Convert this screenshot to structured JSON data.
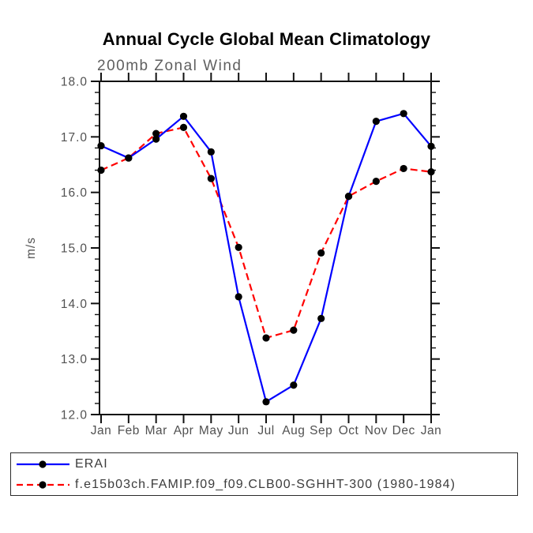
{
  "chart_data": {
    "type": "line",
    "title": "Annual Cycle Global Mean Climatology",
    "subtitle": "200mb Zonal Wind",
    "ylabel": "m/s",
    "ylim": [
      12.0,
      18.0
    ],
    "ytick_step": 1.0,
    "yminor_step": 0.2,
    "ytick_labels": [
      "12.0",
      "13.0",
      "14.0",
      "15.0",
      "16.0",
      "17.0",
      "18.0"
    ],
    "categories": [
      "Jan",
      "Feb",
      "Mar",
      "Apr",
      "May",
      "Jun",
      "Jul",
      "Aug",
      "Sep",
      "Oct",
      "Nov",
      "Dec",
      "Jan"
    ],
    "grid": false,
    "legend_position": "bottom-left-box",
    "axis_color": "#111111",
    "tick_label_color": "#515151",
    "series": [
      {
        "name": "ERAI",
        "color": "#0000ff",
        "line_style": "solid",
        "marker": "filled-circle",
        "marker_color": "#000000",
        "values": [
          16.84,
          16.62,
          16.96,
          17.37,
          16.73,
          14.12,
          12.23,
          12.53,
          13.73,
          15.93,
          17.28,
          17.42,
          16.83
        ]
      },
      {
        "name": "f.e15b03ch.FAMIP.f09_f09.CLB00-SGHHT-300 (1980-1984)",
        "color": "#ff0000",
        "line_style": "dashed",
        "marker": "filled-circle",
        "marker_color": "#000000",
        "values": [
          16.4,
          16.62,
          17.06,
          17.17,
          16.25,
          15.01,
          13.38,
          13.52,
          14.91,
          15.93,
          16.2,
          16.43,
          16.37
        ]
      }
    ]
  }
}
